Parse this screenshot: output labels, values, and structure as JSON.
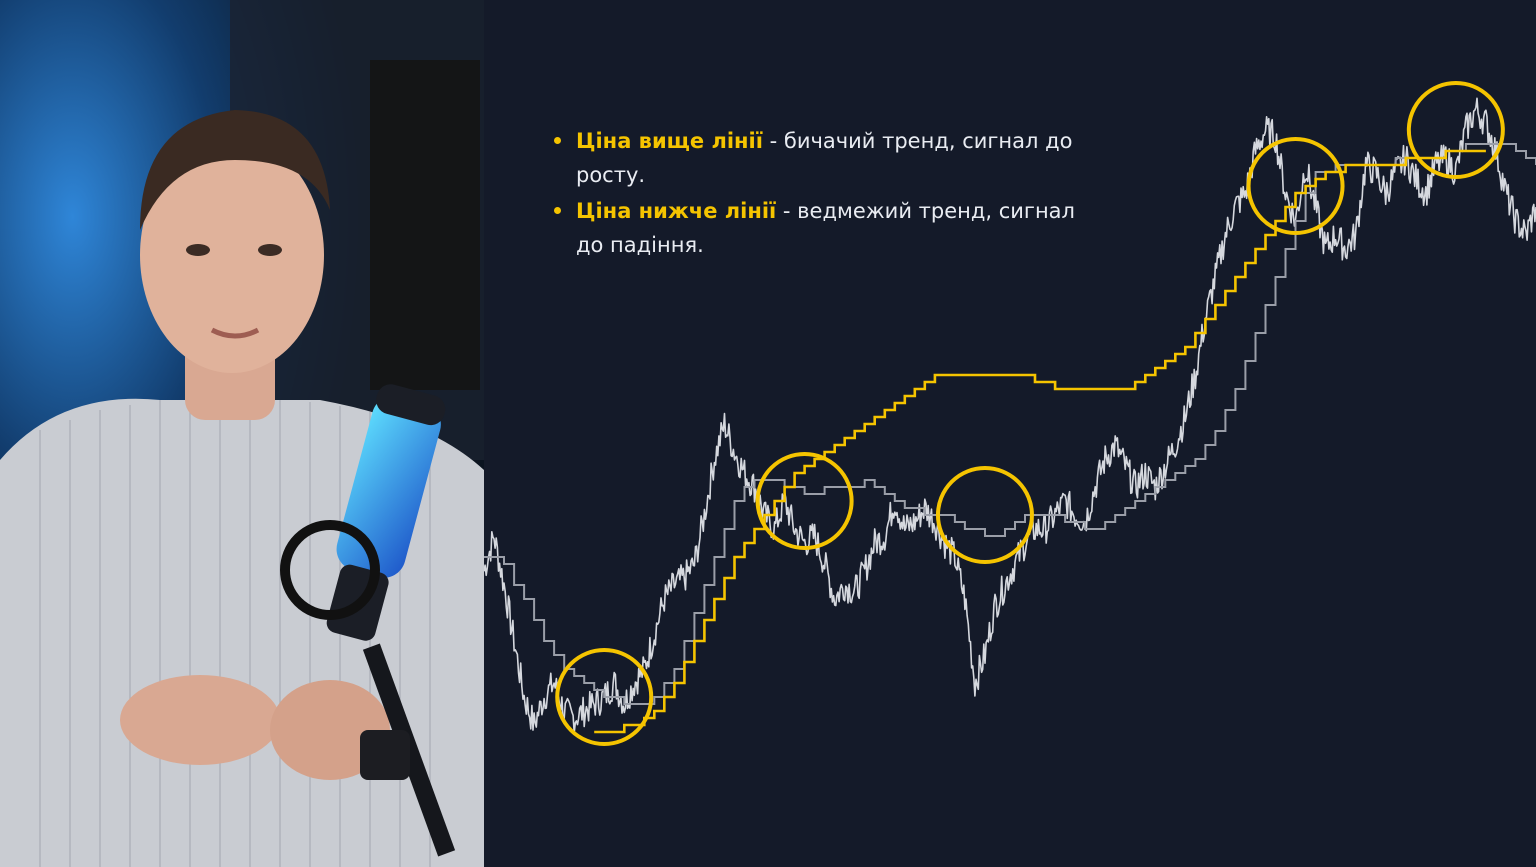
{
  "bullets": [
    {
      "highlight": "Ціна вище лінії",
      "text": " - бичачий тренд, сигнал до росту."
    },
    {
      "highlight": "Ціна нижче лінії",
      "text": " - ведмежий тренд, сигнал до падіння."
    }
  ],
  "colors": {
    "accent": "#f5c400",
    "price": "#e6e8ee",
    "gray_line": "#9a9ea8",
    "background": "#141a29"
  },
  "chart_data": {
    "type": "line",
    "grid": false,
    "x": [
      0,
      1,
      2,
      3,
      4,
      5,
      6,
      7,
      8,
      9,
      10,
      11,
      12,
      13,
      14,
      15,
      16,
      17,
      18,
      19,
      20,
      21,
      22,
      23,
      24,
      25,
      26,
      27,
      28,
      29,
      30,
      31,
      32,
      33,
      34,
      35,
      36,
      37,
      38,
      39,
      40,
      41,
      42,
      43,
      44,
      45,
      46,
      47,
      48,
      49,
      50,
      51,
      52,
      53,
      54,
      55,
      56,
      57,
      58,
      59,
      60,
      61,
      62,
      63,
      64,
      65,
      66,
      67,
      68,
      69,
      70,
      71,
      72,
      73,
      74,
      75,
      76,
      77,
      78,
      79,
      80,
      81,
      82,
      83,
      84,
      85,
      86,
      87,
      88,
      89,
      90,
      91,
      92,
      93,
      94,
      95,
      96,
      97,
      98,
      99,
      100,
      101,
      102,
      103,
      104,
      105
    ],
    "ylim": [
      0,
      100
    ],
    "series": [
      {
        "values": [
          32,
          37,
          30,
          22,
          14,
          10,
          14,
          16,
          12,
          11,
          12,
          13,
          14,
          16,
          13,
          16,
          18,
          23,
          28,
          30,
          31,
          33,
          40,
          48,
          53,
          49,
          46,
          44,
          40,
          38,
          42,
          38,
          36,
          37,
          33,
          28,
          30,
          29,
          32,
          36,
          37,
          42,
          38,
          39,
          41,
          39,
          36,
          34,
          28,
          16,
          20,
          27,
          30,
          33,
          36,
          38,
          38,
          40,
          42,
          40,
          39,
          44,
          48,
          50,
          47,
          44,
          46,
          44,
          47,
          50,
          54,
          60,
          68,
          74,
          80,
          84,
          86,
          92,
          95,
          94,
          86,
          82,
          90,
          84,
          78,
          80,
          78,
          80,
          90,
          89,
          86,
          89,
          91,
          88,
          86,
          90,
          91,
          89,
          95,
          98,
          96,
          92,
          86,
          82,
          80,
          84
        ]
      },
      {
        "values": [
          34,
          34,
          33,
          30,
          28,
          25,
          22,
          20,
          18,
          17,
          16,
          15,
          14,
          14,
          13,
          13,
          13,
          14,
          16,
          18,
          22,
          26,
          30,
          34,
          38,
          42,
          44,
          45,
          45,
          45,
          44,
          44,
          43,
          43,
          44,
          44,
          44,
          44,
          45,
          44,
          43,
          42,
          41,
          41,
          40,
          40,
          40,
          39,
          38,
          38,
          37,
          37,
          38,
          39,
          40,
          40,
          40,
          40,
          39,
          39,
          38,
          38,
          39,
          40,
          41,
          42,
          43,
          44,
          45,
          46,
          47,
          48,
          50,
          52,
          55,
          58,
          62,
          66,
          70,
          74,
          78,
          82,
          86,
          89,
          89,
          90,
          90,
          90,
          90,
          90,
          90,
          91,
          91,
          91,
          91,
          91,
          92,
          92,
          93,
          93,
          93,
          93,
          93,
          92,
          91,
          90
        ]
      },
      {
        "values": [
          null,
          null,
          null,
          null,
          null,
          null,
          null,
          null,
          null,
          null,
          null,
          9,
          9,
          9,
          10,
          10,
          11,
          12,
          14,
          16,
          19,
          22,
          25,
          28,
          31,
          34,
          36,
          38,
          40,
          42,
          44,
          46,
          47,
          48,
          49,
          50,
          51,
          52,
          53,
          54,
          55,
          56,
          57,
          58,
          59,
          60,
          60,
          60,
          60,
          60,
          60,
          60,
          60,
          60,
          60,
          59,
          59,
          58,
          58,
          58,
          58,
          58,
          58,
          58,
          58,
          59,
          60,
          61,
          62,
          63,
          64,
          66,
          68,
          70,
          72,
          74,
          76,
          78,
          80,
          82,
          84,
          86,
          87,
          88,
          89,
          89,
          90,
          90,
          90,
          90,
          90,
          90,
          91,
          91,
          91,
          91,
          92,
          92,
          92,
          92,
          92,
          null,
          null,
          null,
          null,
          null
        ]
      }
    ],
    "highlights": [
      {
        "x": 12,
        "y": 14
      },
      {
        "x": 32,
        "y": 42
      },
      {
        "x": 50,
        "y": 40
      },
      {
        "x": 81,
        "y": 87
      },
      {
        "x": 97,
        "y": 95
      }
    ]
  }
}
